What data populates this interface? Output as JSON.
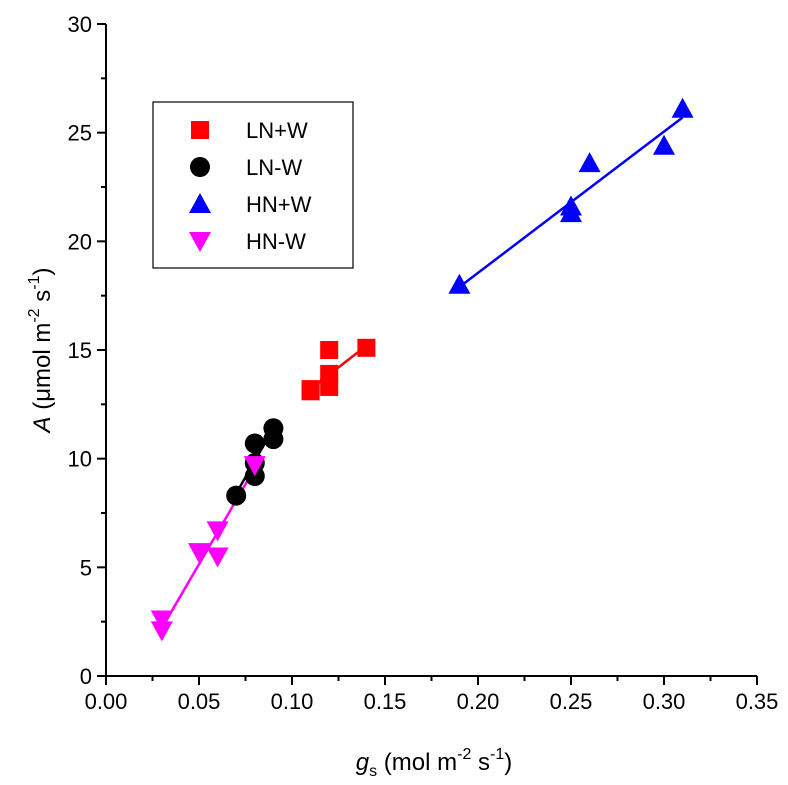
{
  "chart_data": {
    "type": "scatter",
    "x_axis": {
      "label_italic": "g",
      "label_sub": "s",
      "label_units": " (mol m",
      "label_exp1": "-2",
      "label_units2": " s",
      "label_exp2": "-1",
      "label_close": ")",
      "range": [
        0.0,
        0.35
      ],
      "ticks": [
        "0.00",
        "0.05",
        "0.10",
        "0.15",
        "0.20",
        "0.25",
        "0.30",
        "0.35"
      ]
    },
    "y_axis": {
      "label_italic": "A",
      "label_units": " (μmol m",
      "label_exp1": "-2",
      "label_units2": " s",
      "label_exp2": "-1",
      "label_close": ")",
      "range": [
        0,
        30
      ],
      "ticks": [
        "0",
        "5",
        "10",
        "15",
        "20",
        "25",
        "30"
      ]
    },
    "grid": false,
    "legend_position": "top-left",
    "series": [
      {
        "name": "LN+W",
        "marker": "square",
        "color": "#ff0000",
        "points": [
          [
            0.11,
            13.1
          ],
          [
            0.11,
            13.2
          ],
          [
            0.12,
            13.3
          ],
          [
            0.12,
            13.9
          ],
          [
            0.12,
            15.0
          ],
          [
            0.14,
            15.1
          ]
        ],
        "fit": [
          [
            0.11,
            13.2
          ],
          [
            0.14,
            15.2
          ]
        ]
      },
      {
        "name": "LN-W",
        "marker": "circle",
        "color": "#000000",
        "points": [
          [
            0.07,
            8.3
          ],
          [
            0.08,
            9.2
          ],
          [
            0.08,
            9.8
          ],
          [
            0.08,
            10.7
          ],
          [
            0.09,
            10.9
          ],
          [
            0.09,
            11.4
          ]
        ],
        "fit": [
          [
            0.07,
            8.4
          ],
          [
            0.09,
            11.4
          ]
        ]
      },
      {
        "name": "HN+W",
        "marker": "triangle-up",
        "color": "#0000ff",
        "points": [
          [
            0.19,
            18.0
          ],
          [
            0.25,
            21.3
          ],
          [
            0.25,
            21.6
          ],
          [
            0.26,
            23.6
          ],
          [
            0.3,
            24.4
          ],
          [
            0.31,
            26.1
          ]
        ],
        "fit": [
          [
            0.19,
            17.9
          ],
          [
            0.31,
            25.7
          ]
        ]
      },
      {
        "name": "HN-W",
        "marker": "triangle-down",
        "color": "#ff00ff",
        "points": [
          [
            0.03,
            2.1
          ],
          [
            0.03,
            2.6
          ],
          [
            0.05,
            5.7
          ],
          [
            0.06,
            5.5
          ],
          [
            0.06,
            6.7
          ],
          [
            0.08,
            9.7
          ]
        ],
        "fit": [
          [
            0.03,
            2.2
          ],
          [
            0.083,
            10.0
          ]
        ]
      }
    ]
  }
}
